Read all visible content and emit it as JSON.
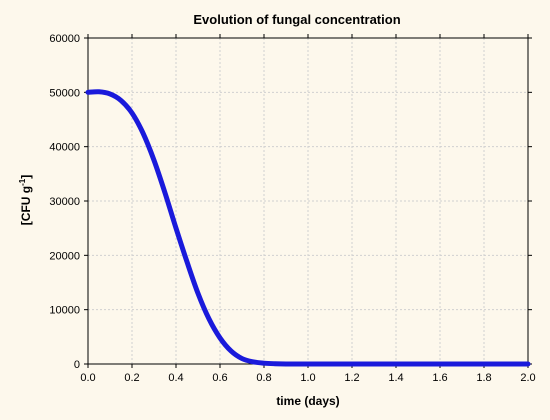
{
  "chart_data": {
    "type": "line",
    "title": "Evolution of fungal concentration",
    "xlabel": "time (days)",
    "ylabel_main": "[CFU g",
    "ylabel_sup": "-1",
    "ylabel_close": "]",
    "xlim": [
      0.0,
      2.0
    ],
    "ylim": [
      0,
      60000
    ],
    "xticks": [
      "0.0",
      "0.2",
      "0.4",
      "0.6",
      "0.8",
      "1.0",
      "1.2",
      "1.4",
      "1.6",
      "1.8",
      "2.0"
    ],
    "yticks": [
      "0",
      "10000",
      "20000",
      "30000",
      "40000",
      "50000",
      "60000"
    ],
    "grid": true,
    "series": [
      {
        "color": "#1a1adb",
        "x": [
          0.0,
          0.05,
          0.1,
          0.15,
          0.2,
          0.25,
          0.3,
          0.35,
          0.4,
          0.45,
          0.5,
          0.55,
          0.6,
          0.65,
          0.7,
          0.75,
          0.8,
          0.85,
          0.9,
          1.0,
          1.2,
          1.4,
          1.6,
          1.8,
          2.0
        ],
        "y": [
          50000,
          50100,
          49700,
          48500,
          46200,
          42500,
          37500,
          31500,
          25000,
          18800,
          13000,
          8300,
          4800,
          2400,
          1000,
          400,
          150,
          50,
          10,
          0,
          0,
          0,
          0,
          0,
          0
        ]
      }
    ]
  }
}
